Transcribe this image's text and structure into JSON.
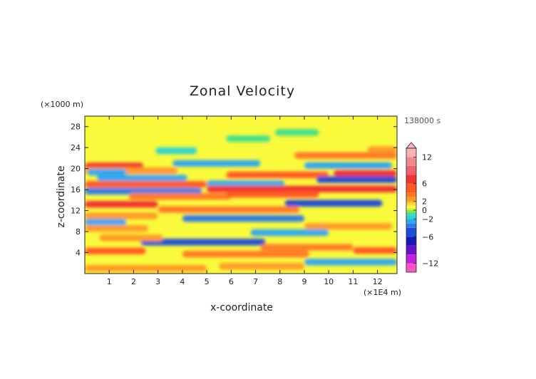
{
  "chart_data": {
    "type": "heatmap",
    "title": "Zonal Velocity",
    "xlabel": "x-coordinate",
    "ylabel": "z-coordinate",
    "x_unit": "(×1E4 m)",
    "y_unit": "(×1000 m)",
    "time_label": "138000 s",
    "xlim": [
      0,
      12.8
    ],
    "ylim": [
      0,
      30
    ],
    "x_ticks": [
      1,
      2,
      3,
      4,
      5,
      6,
      7,
      8,
      9,
      10,
      11,
      12
    ],
    "y_ticks": [
      4,
      8,
      12,
      16,
      20,
      24,
      28
    ],
    "colorbar": {
      "min": -14,
      "max": 14,
      "labels": [
        12,
        6,
        2,
        0,
        -2,
        -6,
        -12
      ],
      "levels": [
        {
          "lo": -14,
          "hi": -12,
          "color": "#ff55c8"
        },
        {
          "lo": -12,
          "hi": -10,
          "color": "#c022e0"
        },
        {
          "lo": -10,
          "hi": -8,
          "color": "#6a10c8"
        },
        {
          "lo": -8,
          "hi": -6,
          "color": "#1818b8"
        },
        {
          "lo": -6,
          "hi": -4,
          "color": "#1e4ed8"
        },
        {
          "lo": -4,
          "hi": -3,
          "color": "#2e7ee8"
        },
        {
          "lo": -3,
          "hi": -2,
          "color": "#32a8f0"
        },
        {
          "lo": -2,
          "hi": -1,
          "color": "#2ad6d2"
        },
        {
          "lo": -1,
          "hi": -0.5,
          "color": "#44e08c"
        },
        {
          "lo": -0.5,
          "hi": 0,
          "color": "#8ee83a"
        },
        {
          "lo": 0,
          "hi": 0.5,
          "color": "#d6f040"
        },
        {
          "lo": 0.5,
          "hi": 1,
          "color": "#fafa3c"
        },
        {
          "lo": 1,
          "hi": 1.5,
          "color": "#ffde2a"
        },
        {
          "lo": 1.5,
          "hi": 2,
          "color": "#ffbe26"
        },
        {
          "lo": 2,
          "hi": 3,
          "color": "#ff9a28"
        },
        {
          "lo": 3,
          "hi": 4,
          "color": "#ff7a26"
        },
        {
          "lo": 4,
          "hi": 6,
          "color": "#ff5a22"
        },
        {
          "lo": 6,
          "hi": 8,
          "color": "#f03230"
        },
        {
          "lo": 8,
          "hi": 10,
          "color": "#f06070"
        },
        {
          "lo": 10,
          "hi": 12,
          "color": "#f08a90"
        },
        {
          "lo": 12,
          "hi": 14,
          "color": "#f7b3b6"
        }
      ]
    },
    "bands": [
      {
        "z": 20.5,
        "x0": 0,
        "x1": 2.4,
        "value": 7
      },
      {
        "z": 19.6,
        "x0": 0,
        "x1": 3.8,
        "value": 2.5
      },
      {
        "z": 19.3,
        "x0": 0.1,
        "x1": 1.7,
        "value": -2.2
      },
      {
        "z": 18.2,
        "x0": 0.5,
        "x1": 4.2,
        "value": -2.2
      },
      {
        "z": 17.0,
        "x0": 0,
        "x1": 5.0,
        "value": 5.2
      },
      {
        "z": 15.7,
        "x0": 0,
        "x1": 4.8,
        "value": -3.2
      },
      {
        "z": 14.7,
        "x0": 1.8,
        "x1": 6.0,
        "value": 3.5
      },
      {
        "z": 13.2,
        "x0": 0,
        "x1": 3.0,
        "value": 6.2
      },
      {
        "z": 11.0,
        "x0": 0,
        "x1": 3.0,
        "value": 2.5
      },
      {
        "z": 9.8,
        "x0": 0,
        "x1": 1.7,
        "value": -2.5
      },
      {
        "z": 8.6,
        "x0": 0,
        "x1": 2.6,
        "value": 2.5
      },
      {
        "z": 6.0,
        "x0": 2.3,
        "x1": 7.4,
        "value": -4.5
      },
      {
        "z": 4.3,
        "x0": 0,
        "x1": 2.5,
        "value": 4.2
      },
      {
        "z": 3.7,
        "x0": 4.0,
        "x1": 9.2,
        "value": 3.5
      },
      {
        "z": 2.2,
        "x0": 9.0,
        "x1": 12.8,
        "value": -2.2
      },
      {
        "z": 23.4,
        "x0": 2.9,
        "x1": 4.6,
        "value": -1.8
      },
      {
        "z": 22.5,
        "x0": 8.6,
        "x1": 12.8,
        "value": 3.2
      },
      {
        "z": 21.0,
        "x0": 3.6,
        "x1": 7.2,
        "value": -2.2
      },
      {
        "z": 20.6,
        "x0": 9.0,
        "x1": 12.6,
        "value": -2.5
      },
      {
        "z": 19.1,
        "x0": 10.2,
        "x1": 12.8,
        "value": 6.5
      },
      {
        "z": 18.8,
        "x0": 5.8,
        "x1": 10.0,
        "value": 5.0
      },
      {
        "z": 17.9,
        "x0": 9.5,
        "x1": 12.8,
        "value": -5.0
      },
      {
        "z": 17.1,
        "x0": 5.0,
        "x1": 8.2,
        "value": -2.6
      },
      {
        "z": 16.1,
        "x0": 5.0,
        "x1": 12.8,
        "value": 7.0
      },
      {
        "z": 15.1,
        "x0": 5.8,
        "x1": 9.6,
        "value": 4.0
      },
      {
        "z": 13.4,
        "x0": 8.2,
        "x1": 12.2,
        "value": -5.2
      },
      {
        "z": 12.2,
        "x0": 3.0,
        "x1": 8.8,
        "value": 3.2
      },
      {
        "z": 10.5,
        "x0": 4.0,
        "x1": 9.0,
        "value": -3.2
      },
      {
        "z": 9.0,
        "x0": 9.0,
        "x1": 12.6,
        "value": 2.8
      },
      {
        "z": 7.8,
        "x0": 6.8,
        "x1": 10.0,
        "value": -2.2
      },
      {
        "z": 6.8,
        "x0": 0.6,
        "x1": 3.2,
        "value": 2.5
      },
      {
        "z": 5.0,
        "x0": 7.2,
        "x1": 11.0,
        "value": 3.0
      },
      {
        "z": 4.4,
        "x0": 11.0,
        "x1": 12.8,
        "value": 4.0
      },
      {
        "z": 1.0,
        "x0": 0,
        "x1": 5.0,
        "value": 2.0
      },
      {
        "z": 1.4,
        "x0": 5.5,
        "x1": 9.0,
        "value": 2.4
      },
      {
        "z": 25.7,
        "x0": 5.8,
        "x1": 7.6,
        "value": -0.8
      },
      {
        "z": 26.9,
        "x0": 7.8,
        "x1": 9.6,
        "value": -0.8
      },
      {
        "z": 23.6,
        "x0": 11.6,
        "x1": 12.8,
        "value": 2.0
      }
    ]
  }
}
